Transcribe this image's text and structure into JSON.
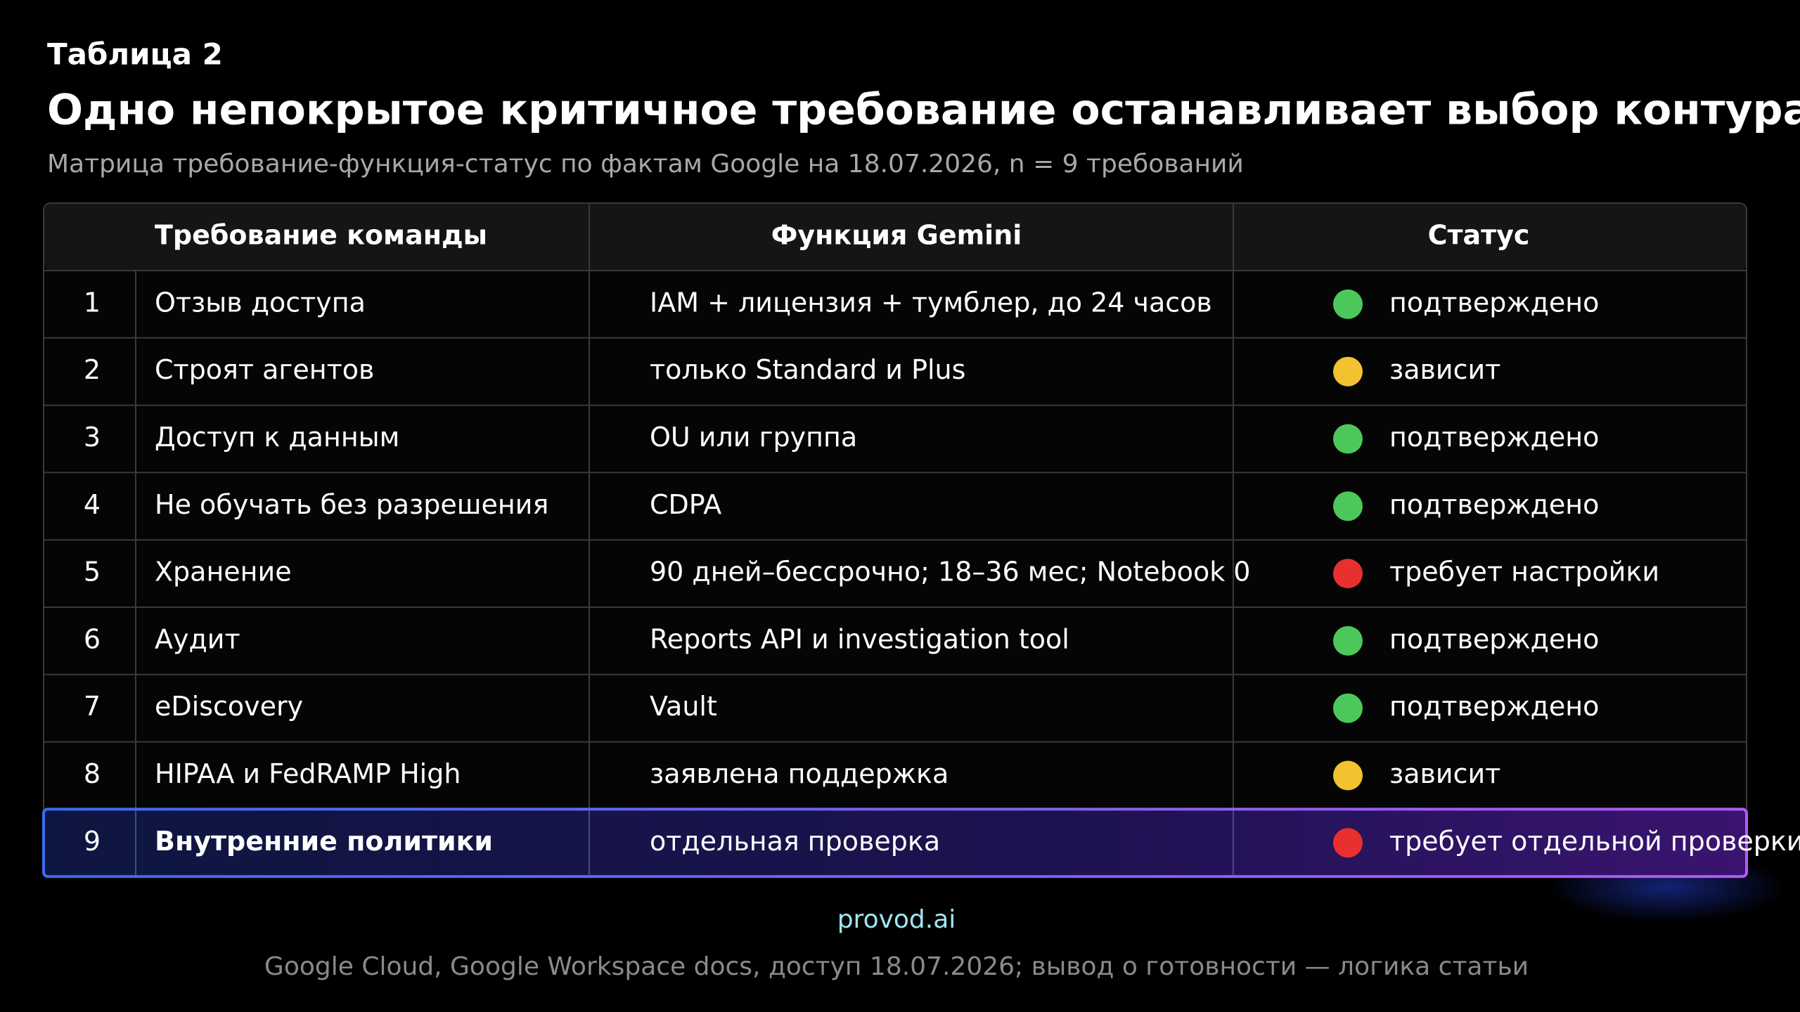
{
  "header": {
    "label": "Таблица 2",
    "title": "Одно непокрытое критичное требование останавливает выбор контура",
    "subtitle": "Матрица требование-функция-статус по фактам Google на 18.07.2026, n = 9 требований"
  },
  "table": {
    "columns": [
      "Требование команды",
      "Функция Gemini",
      "Статус"
    ],
    "highlight_row": 8,
    "rows": [
      {
        "number": 1,
        "requirement": "Отзыв доступа",
        "function": "IAM + лицензия + тумблер, до 24 часов",
        "status": "подтверждено",
        "status_color": "#4cc85a"
      },
      {
        "number": 2,
        "requirement": "Строят агентов",
        "function": "только Standard и Plus",
        "status": "зависит",
        "status_color": "#f2c230"
      },
      {
        "number": 3,
        "requirement": "Доступ к данным",
        "function": "OU или группа",
        "status": "подтверждено",
        "status_color": "#4cc85a"
      },
      {
        "number": 4,
        "requirement": "Не обучать без разрешения",
        "function": "CDPA",
        "status": "подтверждено",
        "status_color": "#4cc85a"
      },
      {
        "number": 5,
        "requirement": "Хранение",
        "function": "90 дней–бессрочно; 18–36 мес; Notebook 0",
        "status": "требует настройки",
        "status_color": "#e8302f"
      },
      {
        "number": 6,
        "requirement": "Аудит",
        "function": "Reports API и investigation tool",
        "status": "подтверждено",
        "status_color": "#4cc85a"
      },
      {
        "number": 7,
        "requirement": "eDiscovery",
        "function": "Vault",
        "status": "подтверждено",
        "status_color": "#4cc85a"
      },
      {
        "number": 8,
        "requirement": "HIPAA и FedRAMP High",
        "function": "заявлена поддержка",
        "status": "зависит",
        "status_color": "#f2c230"
      },
      {
        "number": 9,
        "requirement": "Внутренние политики",
        "function": "отдельная проверка",
        "status": "требует отдельной проверки",
        "status_color": "#e8302f"
      }
    ]
  },
  "footer": {
    "brand": "provod.ai",
    "source": "Google Cloud, Google Workspace docs, доступ 18.07.2026; вывод о готовности — логика статьи"
  }
}
